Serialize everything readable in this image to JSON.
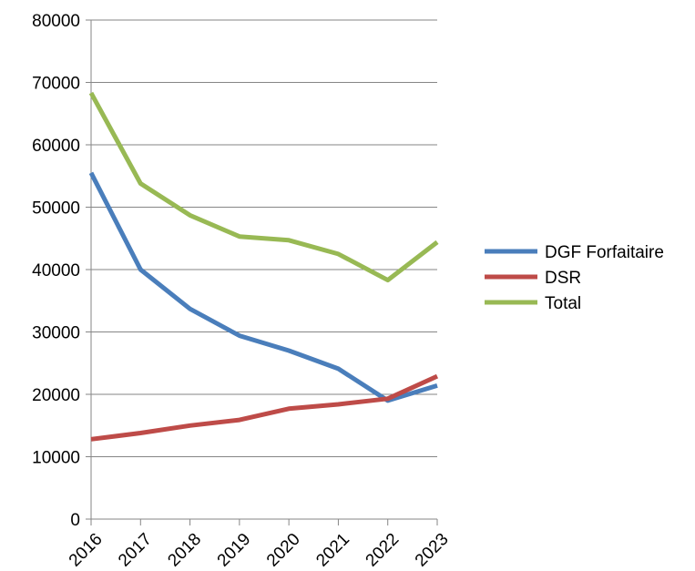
{
  "chart_data": {
    "type": "line",
    "title": "",
    "xlabel": "",
    "ylabel": "",
    "categories": [
      "2016",
      "2017",
      "2018",
      "2019",
      "2020",
      "2021",
      "2022",
      "2023"
    ],
    "ylim": [
      0,
      80000
    ],
    "yticks": [
      "0",
      "10000",
      "20000",
      "30000",
      "40000",
      "50000",
      "60000",
      "70000",
      "80000"
    ],
    "grid": "horizontal",
    "legend": "right",
    "series": [
      {
        "name": "DGF Forfaitaire",
        "color": "#4a7ebb",
        "values": [
          55500,
          40000,
          33700,
          29400,
          27000,
          24100,
          19000,
          21400
        ]
      },
      {
        "name": "DSR",
        "color": "#be4b48",
        "values": [
          12800,
          13800,
          15000,
          15900,
          17700,
          18400,
          19300,
          22900
        ]
      },
      {
        "name": "Total",
        "color": "#98b954",
        "values": [
          68300,
          53800,
          48700,
          45300,
          44700,
          42500,
          38300,
          44400
        ]
      }
    ]
  }
}
